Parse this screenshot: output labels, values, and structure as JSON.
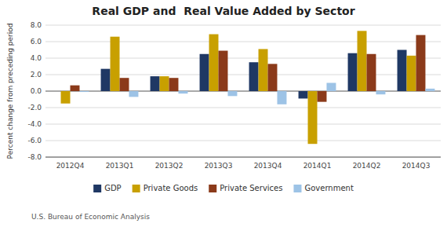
{
  "chart_data": {
    "type": "bar",
    "title": "Real GDP and  Real Value Added by Sector",
    "ylabel": "Percent change from preceding period",
    "source": "U.S. Bureau of Economic Analysis",
    "categories": [
      "2012Q4",
      "2013Q1",
      "2013Q2",
      "2013Q3",
      "2013Q4",
      "2014Q1",
      "2014Q2",
      "2014Q3"
    ],
    "series": [
      {
        "name": "GDP",
        "color": "#1F3864",
        "values": [
          0.0,
          2.7,
          1.8,
          4.5,
          3.5,
          -0.9,
          4.6,
          5.0
        ]
      },
      {
        "name": "Private Goods",
        "color": "#C8A000",
        "values": [
          -1.5,
          6.6,
          1.8,
          6.9,
          5.1,
          -6.4,
          7.3,
          4.3
        ]
      },
      {
        "name": "Private Services",
        "color": "#8B3A1A",
        "values": [
          0.7,
          1.6,
          1.6,
          4.9,
          3.3,
          -1.3,
          4.5,
          6.8
        ]
      },
      {
        "name": "Government",
        "color": "#9DC3E6",
        "values": [
          -0.1,
          -0.7,
          -0.3,
          -0.6,
          -1.6,
          1.0,
          -0.4,
          0.3
        ]
      }
    ],
    "ylim": [
      -8.0,
      8.0
    ],
    "yticks": [
      {
        "value": -8.0,
        "label": "-8.0"
      },
      {
        "value": -6.0,
        "label": "-6.0"
      },
      {
        "value": -4.0,
        "label": "-4.0"
      },
      {
        "value": -2.0,
        "label": "-2.0"
      },
      {
        "value": 0.0,
        "label": "0.0"
      },
      {
        "value": 2.0,
        "label": "2.0"
      },
      {
        "value": 4.0,
        "label": "4.0"
      },
      {
        "value": 6.0,
        "label": "6.0"
      },
      {
        "value": 8.0,
        "label": "8.0"
      }
    ],
    "grid": true,
    "legend": "bottom"
  }
}
